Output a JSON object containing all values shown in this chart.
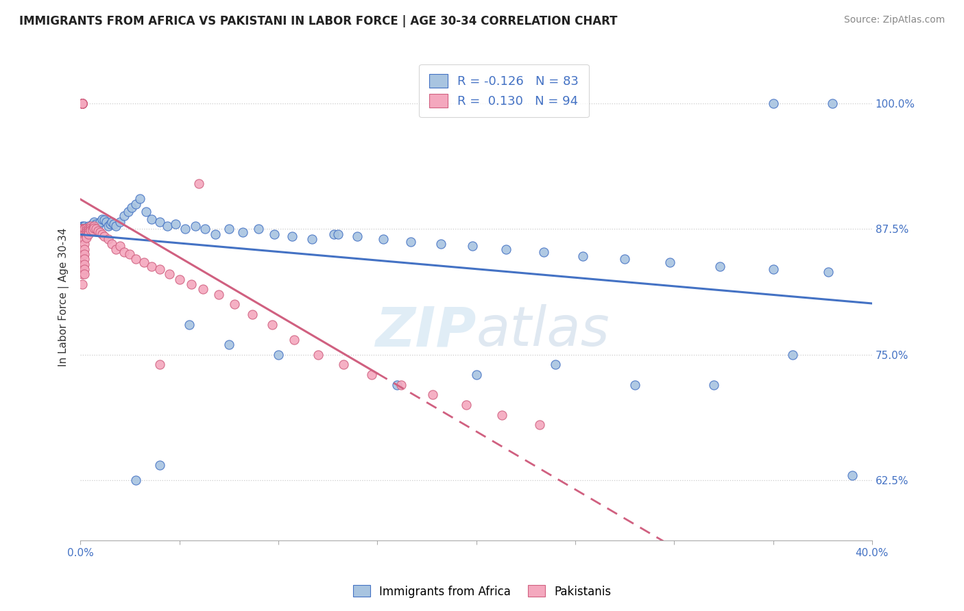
{
  "title": "IMMIGRANTS FROM AFRICA VS PAKISTANI IN LABOR FORCE | AGE 30-34 CORRELATION CHART",
  "source": "Source: ZipAtlas.com",
  "ylabel_label": "In Labor Force | Age 30-34",
  "ytick_vals": [
    0.625,
    0.75,
    0.875,
    1.0
  ],
  "ytick_labels": [
    "62.5%",
    "75.0%",
    "87.5%",
    "100.0%"
  ],
  "legend1_label": "Immigrants from Africa",
  "legend2_label": "Pakistanis",
  "R_africa": -0.126,
  "N_africa": 83,
  "R_pakistani": 0.13,
  "N_pakistani": 94,
  "blue_fill": "#a8c4e0",
  "blue_edge": "#4472c4",
  "pink_fill": "#f4a8be",
  "pink_edge": "#d06080",
  "watermark_color": "#c8dff0",
  "africa_x": [
    0.001,
    0.001,
    0.001,
    0.001,
    0.001,
    0.001,
    0.002,
    0.002,
    0.002,
    0.002,
    0.002,
    0.003,
    0.003,
    0.003,
    0.003,
    0.004,
    0.004,
    0.005,
    0.005,
    0.006,
    0.006,
    0.007,
    0.008,
    0.009,
    0.01,
    0.011,
    0.012,
    0.013,
    0.014,
    0.015,
    0.016,
    0.017,
    0.018,
    0.02,
    0.022,
    0.024,
    0.026,
    0.028,
    0.03,
    0.033,
    0.036,
    0.04,
    0.044,
    0.048,
    0.053,
    0.058,
    0.063,
    0.068,
    0.075,
    0.082,
    0.09,
    0.098,
    0.107,
    0.117,
    0.128,
    0.14,
    0.153,
    0.167,
    0.182,
    0.198,
    0.215,
    0.234,
    0.254,
    0.275,
    0.298,
    0.323,
    0.35,
    0.378,
    0.35,
    0.38,
    0.36,
    0.39,
    0.32,
    0.28,
    0.24,
    0.2,
    0.16,
    0.13,
    0.1,
    0.075,
    0.055,
    0.04,
    0.028
  ],
  "africa_y": [
    0.878,
    0.876,
    0.875,
    0.874,
    0.873,
    0.877,
    0.876,
    0.875,
    0.874,
    0.873,
    0.878,
    0.876,
    0.875,
    0.874,
    0.876,
    0.878,
    0.876,
    0.876,
    0.875,
    0.88,
    0.878,
    0.882,
    0.88,
    0.878,
    0.882,
    0.885,
    0.884,
    0.882,
    0.878,
    0.88,
    0.882,
    0.88,
    0.878,
    0.882,
    0.888,
    0.892,
    0.896,
    0.9,
    0.905,
    0.892,
    0.885,
    0.882,
    0.878,
    0.88,
    0.875,
    0.878,
    0.875,
    0.87,
    0.875,
    0.872,
    0.875,
    0.87,
    0.868,
    0.865,
    0.87,
    0.868,
    0.865,
    0.862,
    0.86,
    0.858,
    0.855,
    0.852,
    0.848,
    0.845,
    0.842,
    0.838,
    0.835,
    0.832,
    1.0,
    1.0,
    0.75,
    0.63,
    0.72,
    0.72,
    0.74,
    0.73,
    0.72,
    0.87,
    0.75,
    0.76,
    0.78,
    0.64,
    0.625
  ],
  "pakistani_x": [
    0.001,
    0.001,
    0.001,
    0.001,
    0.001,
    0.001,
    0.001,
    0.001,
    0.001,
    0.001,
    0.001,
    0.001,
    0.001,
    0.001,
    0.001,
    0.001,
    0.001,
    0.001,
    0.001,
    0.001,
    0.001,
    0.001,
    0.001,
    0.001,
    0.001,
    0.001,
    0.001,
    0.001,
    0.001,
    0.001,
    0.002,
    0.002,
    0.002,
    0.002,
    0.002,
    0.002,
    0.002,
    0.002,
    0.002,
    0.002,
    0.002,
    0.002,
    0.002,
    0.003,
    0.003,
    0.003,
    0.003,
    0.003,
    0.003,
    0.004,
    0.004,
    0.004,
    0.004,
    0.005,
    0.005,
    0.005,
    0.006,
    0.006,
    0.007,
    0.007,
    0.008,
    0.009,
    0.01,
    0.011,
    0.012,
    0.014,
    0.016,
    0.018,
    0.02,
    0.022,
    0.025,
    0.028,
    0.032,
    0.036,
    0.04,
    0.045,
    0.05,
    0.056,
    0.062,
    0.07,
    0.078,
    0.087,
    0.097,
    0.108,
    0.12,
    0.133,
    0.147,
    0.162,
    0.178,
    0.195,
    0.213,
    0.232,
    0.04,
    0.06
  ],
  "pakistani_y": [
    1.0,
    1.0,
    1.0,
    1.0,
    1.0,
    1.0,
    1.0,
    1.0,
    1.0,
    1.0,
    1.0,
    1.0,
    1.0,
    1.0,
    1.0,
    1.0,
    1.0,
    1.0,
    1.0,
    1.0,
    0.875,
    0.875,
    0.875,
    0.875,
    0.875,
    0.875,
    0.85,
    0.84,
    0.83,
    0.82,
    0.875,
    0.875,
    0.875,
    0.875,
    0.87,
    0.865,
    0.86,
    0.855,
    0.85,
    0.845,
    0.84,
    0.835,
    0.83,
    0.876,
    0.874,
    0.872,
    0.87,
    0.868,
    0.866,
    0.876,
    0.874,
    0.872,
    0.87,
    0.878,
    0.876,
    0.874,
    0.876,
    0.874,
    0.878,
    0.876,
    0.875,
    0.873,
    0.872,
    0.87,
    0.868,
    0.865,
    0.86,
    0.855,
    0.858,
    0.852,
    0.85,
    0.845,
    0.842,
    0.838,
    0.835,
    0.83,
    0.825,
    0.82,
    0.815,
    0.81,
    0.8,
    0.79,
    0.78,
    0.765,
    0.75,
    0.74,
    0.73,
    0.72,
    0.71,
    0.7,
    0.69,
    0.68,
    0.74,
    0.92
  ]
}
